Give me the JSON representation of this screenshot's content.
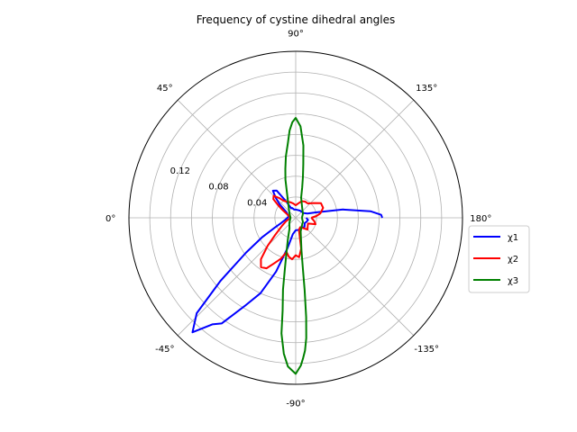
{
  "chart_data": {
    "type": "line",
    "projection": "polar",
    "title": "Frequency of cystine dihedral angles",
    "theta_direction": "clockwise",
    "theta_zero_location": "left",
    "angle_ticks": [
      "0°",
      "45°",
      "90°",
      "135°",
      "180°",
      "-135°",
      "-90°",
      "-45°"
    ],
    "angle_tick_values_deg": [
      0,
      45,
      90,
      135,
      180,
      225,
      270,
      315
    ],
    "radial_ticks": [
      "0.04",
      "0.08",
      "0.12"
    ],
    "radial_tick_values": [
      0.04,
      0.08,
      0.12
    ],
    "radial_grid_values": [
      0.02,
      0.04,
      0.06,
      0.08,
      0.1,
      0.12,
      0.14
    ],
    "rlim": [
      0,
      0.16
    ],
    "grid": true,
    "legend_position": "right",
    "series": [
      {
        "name": "χ1",
        "color": "#0000ff",
        "points": [
          [
            -180,
            0.01
          ],
          [
            -170,
            0.012
          ],
          [
            -160,
            0.011
          ],
          [
            -150,
            0.01
          ],
          [
            -135,
            0.012
          ],
          [
            -120,
            0.011
          ],
          [
            -105,
            0.012
          ],
          [
            -90,
            0.012
          ],
          [
            -80,
            0.016
          ],
          [
            -75,
            0.03
          ],
          [
            -70,
            0.055
          ],
          [
            -65,
            0.08
          ],
          [
            -60,
            0.098
          ],
          [
            -55,
            0.124
          ],
          [
            -52,
            0.13
          ],
          [
            -48,
            0.148
          ],
          [
            -44,
            0.132
          ],
          [
            -40,
            0.094
          ],
          [
            -35,
            0.058
          ],
          [
            -30,
            0.037
          ],
          [
            -25,
            0.022
          ],
          [
            -20,
            0.015
          ],
          [
            -10,
            0.01
          ],
          [
            0,
            0.008
          ],
          [
            10,
            0.007
          ],
          [
            20,
            0.008
          ],
          [
            30,
            0.01
          ],
          [
            40,
            0.02
          ],
          [
            45,
            0.027
          ],
          [
            50,
            0.034
          ],
          [
            55,
            0.032
          ],
          [
            60,
            0.018
          ],
          [
            65,
            0.01
          ],
          [
            70,
            0.01
          ],
          [
            80,
            0.008
          ],
          [
            90,
            0.008
          ],
          [
            120,
            0.008
          ],
          [
            150,
            0.009
          ],
          [
            160,
            0.012
          ],
          [
            165,
            0.02
          ],
          [
            170,
            0.046
          ],
          [
            175,
            0.072
          ],
          [
            178,
            0.082
          ],
          [
            180,
            0.083
          ]
        ]
      },
      {
        "name": "χ2",
        "color": "#ff0000",
        "points": [
          [
            -180,
            0.015
          ],
          [
            -170,
            0.018
          ],
          [
            -162,
            0.02
          ],
          [
            -155,
            0.013
          ],
          [
            -145,
            0.014
          ],
          [
            -135,
            0.016
          ],
          [
            -125,
            0.012
          ],
          [
            -115,
            0.01
          ],
          [
            -105,
            0.012
          ],
          [
            -100,
            0.03
          ],
          [
            -95,
            0.038
          ],
          [
            -90,
            0.036
          ],
          [
            -85,
            0.04
          ],
          [
            -80,
            0.038
          ],
          [
            -75,
            0.034
          ],
          [
            -70,
            0.042
          ],
          [
            -65,
            0.048
          ],
          [
            -60,
            0.056
          ],
          [
            -55,
            0.058
          ],
          [
            -50,
            0.052
          ],
          [
            -45,
            0.038
          ],
          [
            -40,
            0.026
          ],
          [
            -30,
            0.015
          ],
          [
            -20,
            0.01
          ],
          [
            0,
            0.005
          ],
          [
            20,
            0.008
          ],
          [
            30,
            0.014
          ],
          [
            35,
            0.02
          ],
          [
            40,
            0.028
          ],
          [
            45,
            0.03
          ],
          [
            50,
            0.025
          ],
          [
            55,
            0.02
          ],
          [
            60,
            0.018
          ],
          [
            70,
            0.016
          ],
          [
            80,
            0.014
          ],
          [
            90,
            0.012
          ],
          [
            100,
            0.014
          ],
          [
            110,
            0.017
          ],
          [
            120,
            0.018
          ],
          [
            130,
            0.018
          ],
          [
            140,
            0.022
          ],
          [
            150,
            0.028
          ],
          [
            160,
            0.028
          ],
          [
            170,
            0.024
          ],
          [
            175,
            0.02
          ],
          [
            180,
            0.015
          ]
        ]
      },
      {
        "name": "χ3",
        "color": "#008000",
        "points": [
          [
            -180,
            0.006
          ],
          [
            -150,
            0.008
          ],
          [
            -125,
            0.01
          ],
          [
            -110,
            0.014
          ],
          [
            -100,
            0.032
          ],
          [
            -98,
            0.05
          ],
          [
            -97,
            0.07
          ],
          [
            -96,
            0.096
          ],
          [
            -95,
            0.116
          ],
          [
            -94,
            0.128
          ],
          [
            -93,
            0.135
          ],
          [
            -92,
            0.142
          ],
          [
            -90,
            0.15
          ],
          [
            -87,
            0.143
          ],
          [
            -85,
            0.131
          ],
          [
            -83,
            0.112
          ],
          [
            -82,
            0.09
          ],
          [
            -80,
            0.07
          ],
          [
            -78,
            0.05
          ],
          [
            -75,
            0.034
          ],
          [
            -70,
            0.022
          ],
          [
            -60,
            0.012
          ],
          [
            -40,
            0.008
          ],
          [
            0,
            0.005
          ],
          [
            40,
            0.008
          ],
          [
            60,
            0.014
          ],
          [
            70,
            0.024
          ],
          [
            75,
            0.038
          ],
          [
            78,
            0.048
          ],
          [
            81,
            0.06
          ],
          [
            84,
            0.072
          ],
          [
            86,
            0.084
          ],
          [
            88,
            0.092
          ],
          [
            90,
            0.096
          ],
          [
            93,
            0.088
          ],
          [
            96,
            0.07
          ],
          [
            98,
            0.052
          ],
          [
            100,
            0.04
          ],
          [
            102,
            0.03
          ],
          [
            105,
            0.02
          ],
          [
            115,
            0.014
          ],
          [
            130,
            0.01
          ],
          [
            150,
            0.008
          ],
          [
            180,
            0.006
          ]
        ]
      }
    ]
  }
}
